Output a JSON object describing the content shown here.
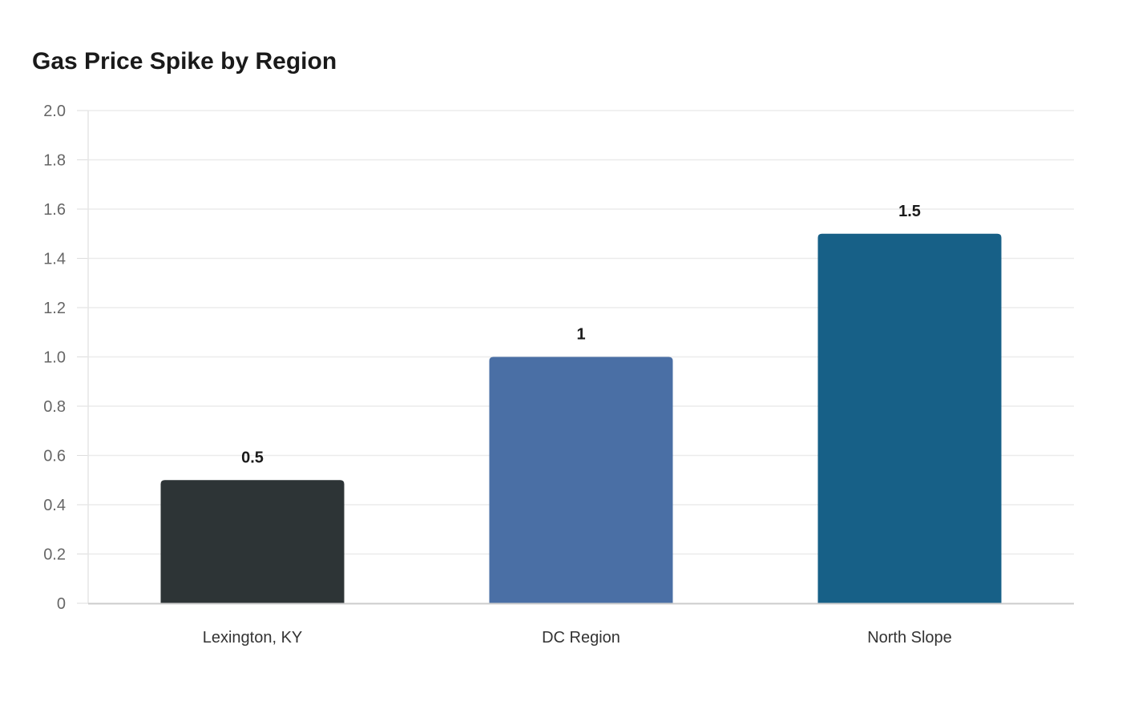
{
  "chart_data": {
    "type": "bar",
    "title": "Gas Price Spike by Region",
    "xlabel": "",
    "ylabel": "",
    "categories": [
      "Lexington, KY",
      "DC Region",
      "North Slope"
    ],
    "values": [
      0.5,
      1,
      1.5
    ],
    "data_labels": [
      "0.5",
      "1",
      "1.5"
    ],
    "colors": [
      "#2d3436",
      "#4a6fa5",
      "#176087"
    ],
    "ylim": [
      0,
      2.0
    ],
    "yticks": [
      "0",
      "0.2",
      "0.4",
      "0.6",
      "0.8",
      "1.0",
      "1.2",
      "1.4",
      "1.6",
      "1.8",
      "2.0"
    ],
    "grid": true,
    "legend": "none"
  }
}
